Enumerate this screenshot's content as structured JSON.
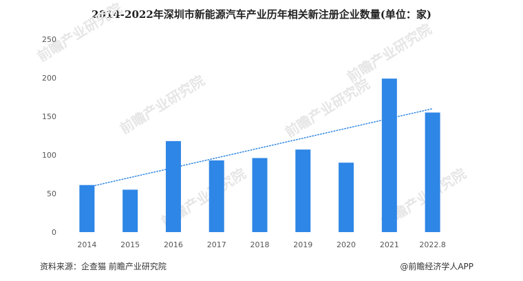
{
  "title": "2014-2022年深圳市新能源汽车产业历年相关新注册企业数量(单位：家)",
  "source": "资料来源：企查猫 前瞻产业研究院",
  "credit": "@前瞻经济学人APP",
  "watermark": "前瞻产业研究院",
  "colors": {
    "bar": "#2E86E6",
    "trend": "#2E86E6",
    "axis_text": "#555555",
    "watermark": "#e6e6e6"
  },
  "chart_data": {
    "type": "bar",
    "title": "2014-2022年深圳市新能源汽车产业历年相关新注册企业数量(单位：家)",
    "categories": [
      "2014",
      "2015",
      "2016",
      "2017",
      "2018",
      "2019",
      "2020",
      "2021",
      "2022.8"
    ],
    "values": [
      61,
      55,
      118,
      93,
      96,
      107,
      90,
      199,
      155
    ],
    "ylim": [
      0,
      250
    ],
    "yticks": [
      0,
      50,
      100,
      150,
      200,
      250
    ],
    "trendline": {
      "style": "dotted",
      "from": 58,
      "to": 160
    },
    "grid": false,
    "legend": "none"
  }
}
